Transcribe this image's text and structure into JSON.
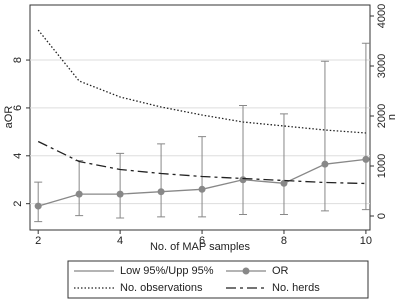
{
  "chart_data": {
    "type": "line",
    "x": [
      2,
      3,
      4,
      5,
      6,
      7,
      8,
      9,
      10
    ],
    "xlim": [
      1.8,
      10.1
    ],
    "xticks": [
      2,
      4,
      6,
      8,
      10
    ],
    "ylim": [
      0.9,
      10.3
    ],
    "yticks": [
      2,
      4,
      6,
      8
    ],
    "y2lim": [
      -280,
      4220
    ],
    "y2ticks": [
      0,
      1000,
      2000,
      3000,
      4000
    ],
    "xlabel": "No. of MAP samples",
    "ylabel": "aOR",
    "y2label": "n",
    "grid": true,
    "intervals": {
      "name": "Low 95%/Upp 95%",
      "color": "#888888",
      "low": [
        1.25,
        1.5,
        1.4,
        1.45,
        1.45,
        1.55,
        1.55,
        1.7,
        1.75
      ],
      "high": [
        2.9,
        3.8,
        4.1,
        4.5,
        4.8,
        6.1,
        5.75,
        7.95,
        8.7
      ]
    },
    "series": [
      {
        "name": "OR",
        "color": "#888888",
        "style": "solid",
        "marker": "circle",
        "values": [
          1.9,
          2.4,
          2.4,
          2.5,
          2.6,
          3.0,
          2.85,
          3.65,
          3.85
        ]
      },
      {
        "name": "No. observations",
        "color": "#222222",
        "style": "dotted",
        "axis": "y2",
        "values": [
          3720,
          2700,
          2380,
          2180,
          2020,
          1880,
          1800,
          1720,
          1660
        ]
      },
      {
        "name": "No. herds",
        "color": "#222222",
        "style": "dashdot",
        "axis": "y2",
        "values": [
          1490,
          1090,
          930,
          850,
          790,
          750,
          710,
          670,
          650
        ]
      }
    ]
  }
}
